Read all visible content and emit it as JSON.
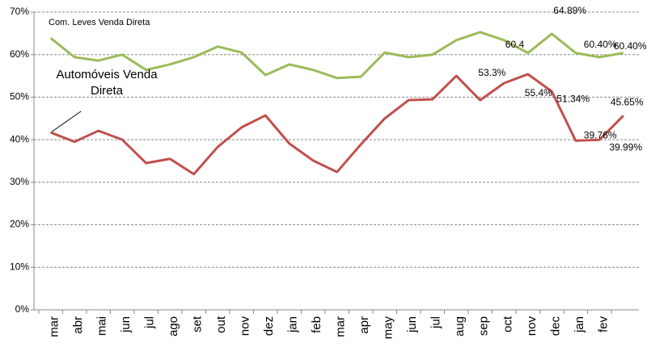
{
  "chart_data": {
    "type": "line",
    "categories": [
      "mar",
      "abr",
      "mai",
      "jun",
      "jul",
      "ago",
      "set",
      "out",
      "nov",
      "dez",
      "jan",
      "feb",
      "mar",
      "apr",
      "may",
      "jun",
      "jul",
      "aug",
      "sep",
      "oct",
      "nov",
      "dec",
      "jan",
      "fev",
      null
    ],
    "series": [
      {
        "name": "Com. Leves Venda Direta",
        "color": "#9bbb59",
        "values": [
          63.9,
          59.4,
          58.6,
          60.0,
          56.4,
          57.7,
          59.4,
          61.9,
          60.5,
          55.2,
          57.7,
          56.4,
          54.5,
          54.8,
          60.5,
          59.4,
          60.0,
          63.4,
          65.3,
          63.4,
          60.4,
          64.89,
          60.4,
          59.4,
          60.4
        ],
        "value_labels": [
          null,
          null,
          null,
          null,
          null,
          null,
          null,
          null,
          null,
          null,
          null,
          null,
          null,
          null,
          null,
          null,
          null,
          null,
          null,
          null,
          "60.4",
          "64.89%",
          "60.40%",
          null,
          "60.40%"
        ]
      },
      {
        "name": "Automóveis Venda Direta",
        "color": "#c0504d",
        "values": [
          41.7,
          39.5,
          42.1,
          40.0,
          34.5,
          35.5,
          31.9,
          38.3,
          42.9,
          45.7,
          39.1,
          35.1,
          32.4,
          38.9,
          45.0,
          49.3,
          49.5,
          55.0,
          49.3,
          53.3,
          55.4,
          51.34,
          39.76,
          39.99,
          45.65
        ],
        "value_labels": [
          null,
          null,
          null,
          null,
          null,
          null,
          null,
          null,
          null,
          null,
          null,
          null,
          null,
          null,
          null,
          null,
          null,
          null,
          null,
          "53.3%",
          "55.4%",
          "51.34%",
          "39.76%",
          "39.99%",
          "45.65%"
        ]
      }
    ],
    "ylim": [
      0,
      70
    ],
    "yticks": [
      {
        "value": 0,
        "label": "0%"
      },
      {
        "value": 10,
        "label": "10%"
      },
      {
        "value": 20,
        "label": "20%"
      },
      {
        "value": 30,
        "label": "30%"
      },
      {
        "value": 40,
        "label": "40%"
      },
      {
        "value": 50,
        "label": "50%"
      },
      {
        "value": 60,
        "label": "60%"
      },
      {
        "value": 70,
        "label": "70%"
      }
    ],
    "grid": true
  }
}
